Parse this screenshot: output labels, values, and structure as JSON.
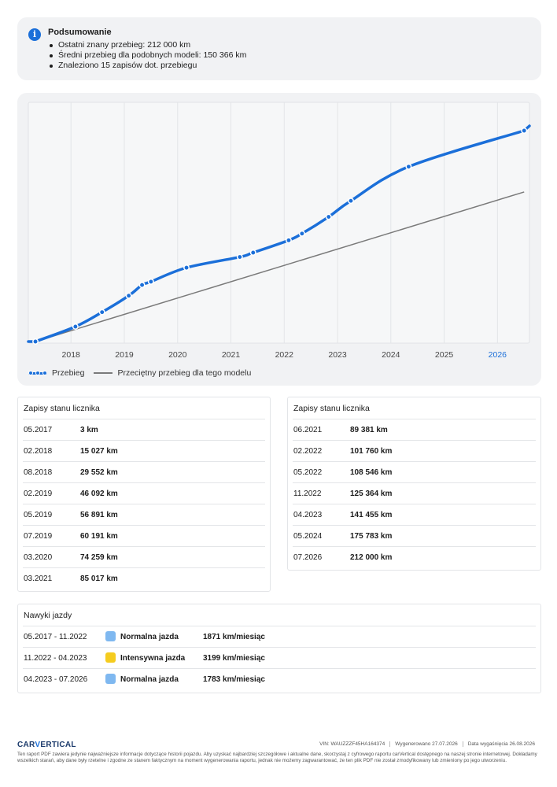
{
  "summary": {
    "title": "Podsumowanie",
    "items": [
      "Ostatni znany przebieg: 212 000 km",
      "Średni przebieg dla podobnych modeli: 150 366 km",
      "Znaleziono 15 zapisów dot. przebiegu"
    ]
  },
  "chart_data": {
    "type": "line",
    "title": "",
    "xlabel": "",
    "ylabel": "",
    "x_ticks": [
      "2018",
      "2019",
      "2020",
      "2021",
      "2022",
      "2023",
      "2024",
      "2025",
      "2026"
    ],
    "highlighted_tick": "2026",
    "grid": "vertical",
    "legend_position": "bottom-left",
    "series": [
      {
        "name": "Przebieg",
        "color": "#1b6fd9",
        "points": [
          {
            "date": "2017-05",
            "km": 3
          },
          {
            "date": "2018-02",
            "km": 15027
          },
          {
            "date": "2018-08",
            "km": 29552
          },
          {
            "date": "2019-02",
            "km": 46092
          },
          {
            "date": "2019-05",
            "km": 56891
          },
          {
            "date": "2019-07",
            "km": 60191
          },
          {
            "date": "2020-03",
            "km": 74259
          },
          {
            "date": "2021-03",
            "km": 85017
          },
          {
            "date": "2021-06",
            "km": 89381
          },
          {
            "date": "2022-02",
            "km": 101760
          },
          {
            "date": "2022-05",
            "km": 108546
          },
          {
            "date": "2022-11",
            "km": 125364
          },
          {
            "date": "2023-04",
            "km": 141455
          },
          {
            "date": "2024-05",
            "km": 175783
          },
          {
            "date": "2026-07",
            "km": 212000
          }
        ]
      },
      {
        "name": "Przeciętny przebieg dla tego modelu",
        "color": "#7a7a7a",
        "points": [
          {
            "date": "2017-05",
            "km": 0
          },
          {
            "date": "2026-07",
            "km": 150366
          }
        ]
      }
    ]
  },
  "left_table": {
    "title": "Zapisy stanu licznika",
    "rows": [
      {
        "date": "05.2017",
        "km": "3 km"
      },
      {
        "date": "02.2018",
        "km": "15 027 km"
      },
      {
        "date": "08.2018",
        "km": "29 552 km"
      },
      {
        "date": "02.2019",
        "km": "46 092 km"
      },
      {
        "date": "05.2019",
        "km": "56 891 km"
      },
      {
        "date": "07.2019",
        "km": "60 191 km"
      },
      {
        "date": "03.2020",
        "km": "74 259 km"
      },
      {
        "date": "03.2021",
        "km": "85 017 km"
      }
    ]
  },
  "right_table": {
    "title": "Zapisy stanu licznika",
    "rows": [
      {
        "date": "06.2021",
        "km": "89 381 km"
      },
      {
        "date": "02.2022",
        "km": "101 760 km"
      },
      {
        "date": "05.2022",
        "km": "108 546 km"
      },
      {
        "date": "11.2022",
        "km": "125 364 km"
      },
      {
        "date": "04.2023",
        "km": "141 455 km"
      },
      {
        "date": "05.2024",
        "km": "175 783 km"
      },
      {
        "date": "07.2026",
        "km": "212 000 km"
      }
    ]
  },
  "habits": {
    "title": "Nawyki jazdy",
    "rows": [
      {
        "period": "05.2017 - 11.2022",
        "style": "Normalna jazda",
        "rate": "1871 km/miesiąc",
        "color": "#7fb8f0"
      },
      {
        "period": "11.2022 - 04.2023",
        "style": "Intensywna jazda",
        "rate": "3199 km/miesiąc",
        "color": "#f5cc1f"
      },
      {
        "period": "04.2023 - 07.2026",
        "style": "Normalna jazda",
        "rate": "1783 km/miesiąc",
        "color": "#7fb8f0"
      }
    ]
  },
  "footer": {
    "logo_a": "CAR",
    "logo_b": "V",
    "logo_c": "ERTICAL",
    "vin": "VIN: WAUZZZF45HA164374",
    "generated": "Wygenerowano 27.07.2026",
    "expires": "Data wygaśnięcia 26.08.2026",
    "disclaimer": "Ten raport PDF zawiera jedynie najważniejsze informacje dotyczące historii pojazdu. Aby uzyskać najbardziej szczegółowe i aktualne dane, skorzystaj z cyfrowego raportu carVertical dostępnego na naszej stronie internetowej. Dokładamy wszelkich starań, aby dane były rzetelne i zgodne ze stanem faktycznym na moment wygenerowania raportu, jednak nie możemy zagwarantować, że ten plik PDF nie został zmodyfikowany lub zmieniony po jego utworzeniu."
  }
}
